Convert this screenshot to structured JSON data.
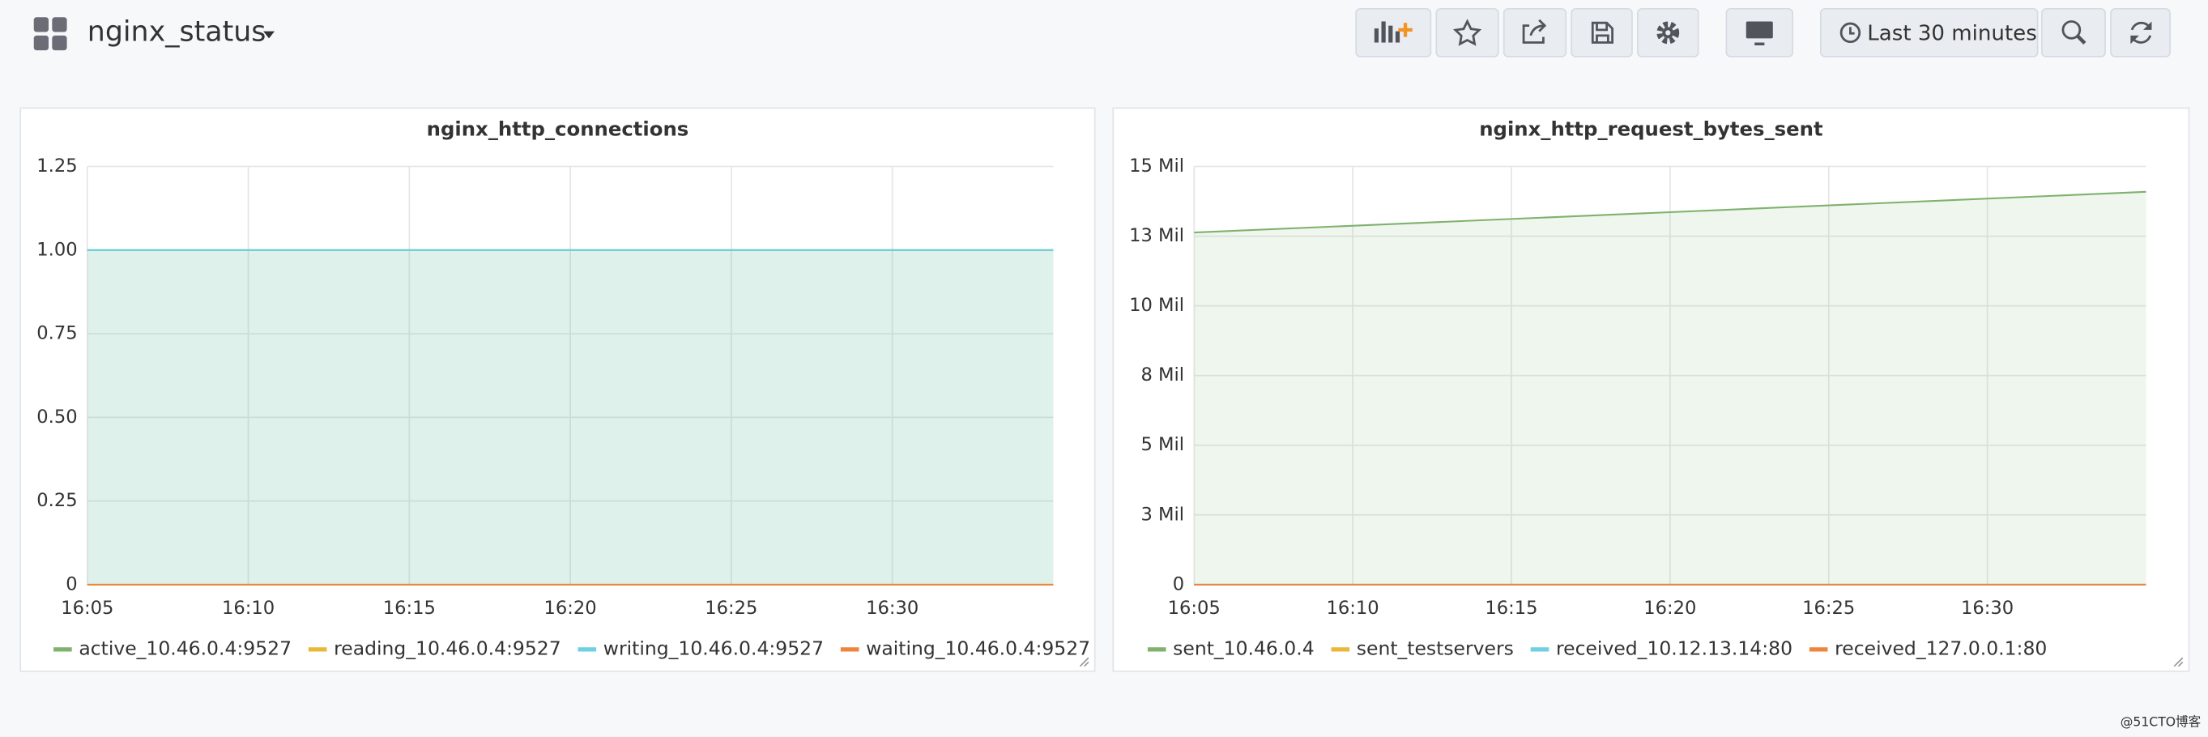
{
  "header": {
    "title": "nginx_status",
    "time_range": "Last 30 minutes"
  },
  "chart_data": [
    {
      "type": "line",
      "title": "nginx_http_connections",
      "x": [
        "16:05",
        "16:35"
      ],
      "xlim": [
        "16:05",
        "16:35"
      ],
      "xticks": [
        "16:05",
        "16:10",
        "16:15",
        "16:20",
        "16:25",
        "16:30"
      ],
      "ylim": [
        0,
        1.25
      ],
      "yticks": [
        0,
        0.25,
        {
          "value": 0.5,
          "label": "0.50"
        },
        0.75,
        {
          "value": 1,
          "label": "1.00"
        },
        1.25
      ],
      "grid": true,
      "fill": true,
      "series": [
        {
          "name": "active_10.46.0.4:9527",
          "color": "#7eb26d",
          "values": [
            1,
            1
          ]
        },
        {
          "name": "reading_10.46.0.4:9527",
          "color": "#eab839",
          "values": [
            0,
            0
          ]
        },
        {
          "name": "writing_10.46.0.4:9527",
          "color": "#6ed0e0",
          "values": [
            1,
            1
          ]
        },
        {
          "name": "waiting_10.46.0.4:9527",
          "color": "#ef843c",
          "values": [
            0,
            0
          ]
        }
      ]
    },
    {
      "type": "line",
      "title": "nginx_http_request_bytes_sent",
      "x": [
        "16:05",
        "16:35"
      ],
      "xlim": [
        "16:05",
        "16:35"
      ],
      "xticks": [
        "16:05",
        "16:10",
        "16:15",
        "16:20",
        "16:25",
        "16:30"
      ],
      "ylim": [
        0,
        15000000
      ],
      "yticks": [
        {
          "value": 0,
          "label": "0"
        },
        {
          "value": 2500000,
          "label": "3 Mil"
        },
        {
          "value": 5000000,
          "label": "5 Mil"
        },
        {
          "value": 7500000,
          "label": "8 Mil"
        },
        {
          "value": 10000000,
          "label": "10 Mil"
        },
        {
          "value": 12500000,
          "label": "13 Mil"
        },
        {
          "value": 15000000,
          "label": "15 Mil"
        }
      ],
      "grid": true,
      "fill": true,
      "series": [
        {
          "name": "sent_10.46.0.4",
          "color": "#7eb26d",
          "values": [
            12630000,
            14090000
          ]
        },
        {
          "name": "sent_testservers",
          "color": "#eab839",
          "values": [
            0,
            0
          ]
        },
        {
          "name": "received_10.12.13.14:80",
          "color": "#6ed0e0",
          "values": [
            0,
            0
          ]
        },
        {
          "name": "received_127.0.0.1:80",
          "color": "#ef843c",
          "values": [
            0,
            0
          ]
        }
      ]
    }
  ],
  "watermark": "@51CTO博客"
}
